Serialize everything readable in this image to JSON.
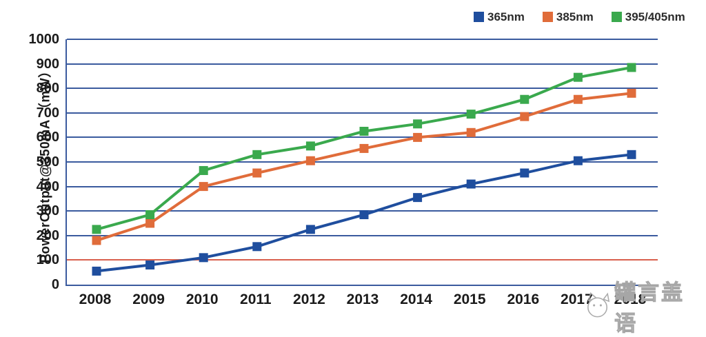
{
  "chart_data": {
    "type": "line",
    "title": "",
    "xlabel": "",
    "ylabel": "PowerOutput@350mA （mW）",
    "ylim": [
      0,
      1000
    ],
    "ytick_step": 100,
    "grid": "horizontal",
    "legend_position": "top-right",
    "categories": [
      "2008",
      "2009",
      "2010",
      "2011",
      "2012",
      "2013",
      "2014",
      "2015",
      "2016",
      "2017",
      "2018"
    ],
    "series": [
      {
        "name": "365nm",
        "color": "#1f4e9e",
        "values": [
          55,
          80,
          110,
          155,
          225,
          285,
          355,
          410,
          455,
          505,
          530
        ]
      },
      {
        "name": "385nm",
        "color": "#e06c3a",
        "values": [
          180,
          250,
          400,
          455,
          505,
          555,
          600,
          620,
          685,
          755,
          780
        ]
      },
      {
        "name": "395/405nm",
        "color": "#3aa94d",
        "values": [
          225,
          285,
          465,
          530,
          565,
          625,
          655,
          695,
          755,
          845,
          885
        ]
      }
    ],
    "reference_line": {
      "value": 100,
      "color": "#d95f4c"
    }
  },
  "colors": {
    "gridline": "#3a5a9e",
    "axis": "#3a5a9e",
    "tick_text": "#1a1a1a"
  },
  "watermark": {
    "icon": "cat-face-icon",
    "text": "罐言盖语"
  }
}
